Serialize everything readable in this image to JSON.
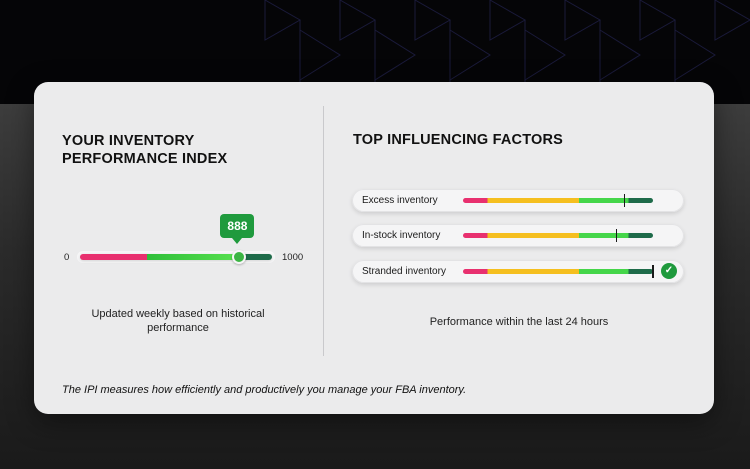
{
  "ipi": {
    "title": "YOUR INVENTORY PERFORMANCE INDEX",
    "scale_min": "0",
    "scale_max": "1000",
    "score": "888",
    "score_fraction": 0.82,
    "updated_note": "Updated weekly based on historical performance"
  },
  "factors": {
    "title": "TOP INFLUENCING FACTORS",
    "items": [
      {
        "label": "Excess inventory",
        "marker_fraction": 0.85,
        "checked": false
      },
      {
        "label": "In-stock inventory",
        "marker_fraction": 0.81,
        "checked": false
      },
      {
        "label": "Stranded inventory",
        "marker_fraction": 1.0,
        "checked": true
      }
    ],
    "check_symbol": "✓",
    "footnote": "Performance within the last 24 hours"
  },
  "footer": {
    "text": "The IPI measures how efficiently and productively you manage your FBA inventory."
  },
  "colors": {
    "poor": "#e8306f",
    "fair": "#f5bf1f",
    "good": "#45d64a",
    "great": "#1e6b4a",
    "accent": "#1f9a3d"
  }
}
